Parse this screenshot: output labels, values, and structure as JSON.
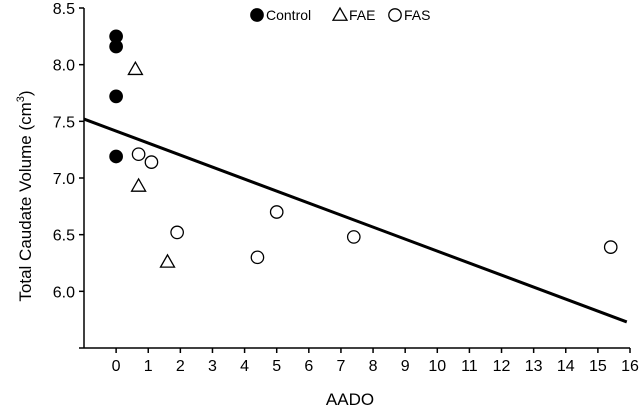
{
  "chart_data": {
    "type": "scatter",
    "title": "",
    "xlabel": "AADO",
    "ylabel_main": "Total Caudate Volume (cm",
    "ylabel_sup": "3",
    "ylabel_close": ")",
    "xlim": [
      -1,
      16
    ],
    "ylim": [
      5.5,
      8.5
    ],
    "x_ticks": [
      0,
      1,
      2,
      3,
      4,
      5,
      6,
      7,
      8,
      9,
      10,
      11,
      12,
      13,
      14,
      15,
      16
    ],
    "x_tick_labels": [
      "0",
      "1",
      "2",
      "3",
      "4",
      "5",
      "6",
      "7",
      "8",
      "9",
      "10",
      "11",
      "12",
      "13",
      "14",
      "15",
      "16"
    ],
    "y_ticks": [
      6.0,
      6.5,
      7.0,
      7.5,
      8.0,
      8.5
    ],
    "y_tick_labels": [
      "6.0",
      "6.5",
      "7.0",
      "7.5",
      "8.0",
      "8.5"
    ],
    "legend_position": "top-center",
    "grid": false,
    "series": [
      {
        "name": "Control",
        "marker": "filled-circle",
        "points": [
          [
            0,
            8.25
          ],
          [
            0,
            8.16
          ],
          [
            0,
            7.72
          ],
          [
            0,
            7.19
          ]
        ]
      },
      {
        "name": "FAE",
        "marker": "open-triangle",
        "points": [
          [
            0.6,
            7.96
          ],
          [
            0.7,
            6.93
          ],
          [
            1.6,
            6.26
          ]
        ]
      },
      {
        "name": "FAS",
        "marker": "open-circle",
        "points": [
          [
            0.7,
            7.21
          ],
          [
            1.1,
            7.14
          ],
          [
            1.9,
            6.52
          ],
          [
            4.4,
            6.3
          ],
          [
            5.0,
            6.7
          ],
          [
            7.4,
            6.48
          ],
          [
            15.4,
            6.39
          ]
        ]
      }
    ],
    "regression_line": {
      "x": [
        -1,
        15.9
      ],
      "y": [
        7.52,
        5.73
      ]
    }
  }
}
